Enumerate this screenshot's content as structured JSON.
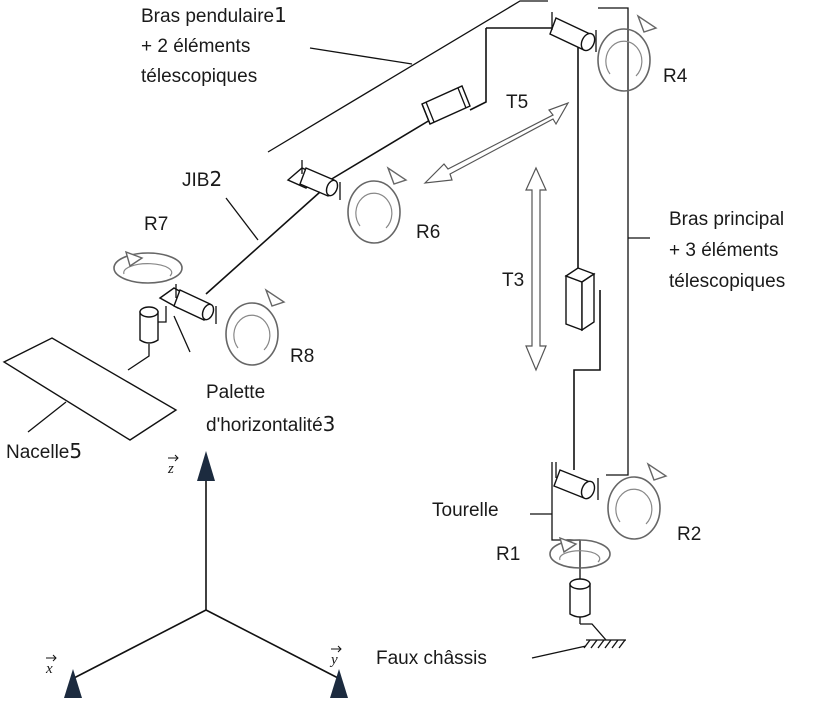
{
  "labels": {
    "bras_pendulaire": {
      "line1": "Bras pendulaire",
      "num": "1",
      "line2": "+ 2 éléments",
      "line3": "télescopiques"
    },
    "jib": {
      "text": "JIB",
      "num": "2"
    },
    "bras_principal": {
      "line1": "Bras principal",
      "line2": "+ 3 éléments",
      "line3": "télescopiques"
    },
    "palette": {
      "line1": "Palette",
      "line2": "d'horizontalité",
      "num": "3"
    },
    "nacelle": {
      "text": "Nacelle",
      "num": "5"
    },
    "tourelle": "Tourelle",
    "faux_chassis": "Faux châssis"
  },
  "joints": {
    "r1": "R1",
    "r2": "R2",
    "r4": "R4",
    "r6": "R6",
    "r7": "R7",
    "r8": "R8",
    "t3": "T3",
    "t5": "T5"
  },
  "axes": {
    "z": "z",
    "x": "x",
    "y": "y"
  },
  "colors": {
    "axis_arrow": "#1c2b3f",
    "rotation_arrow": "#666666"
  }
}
